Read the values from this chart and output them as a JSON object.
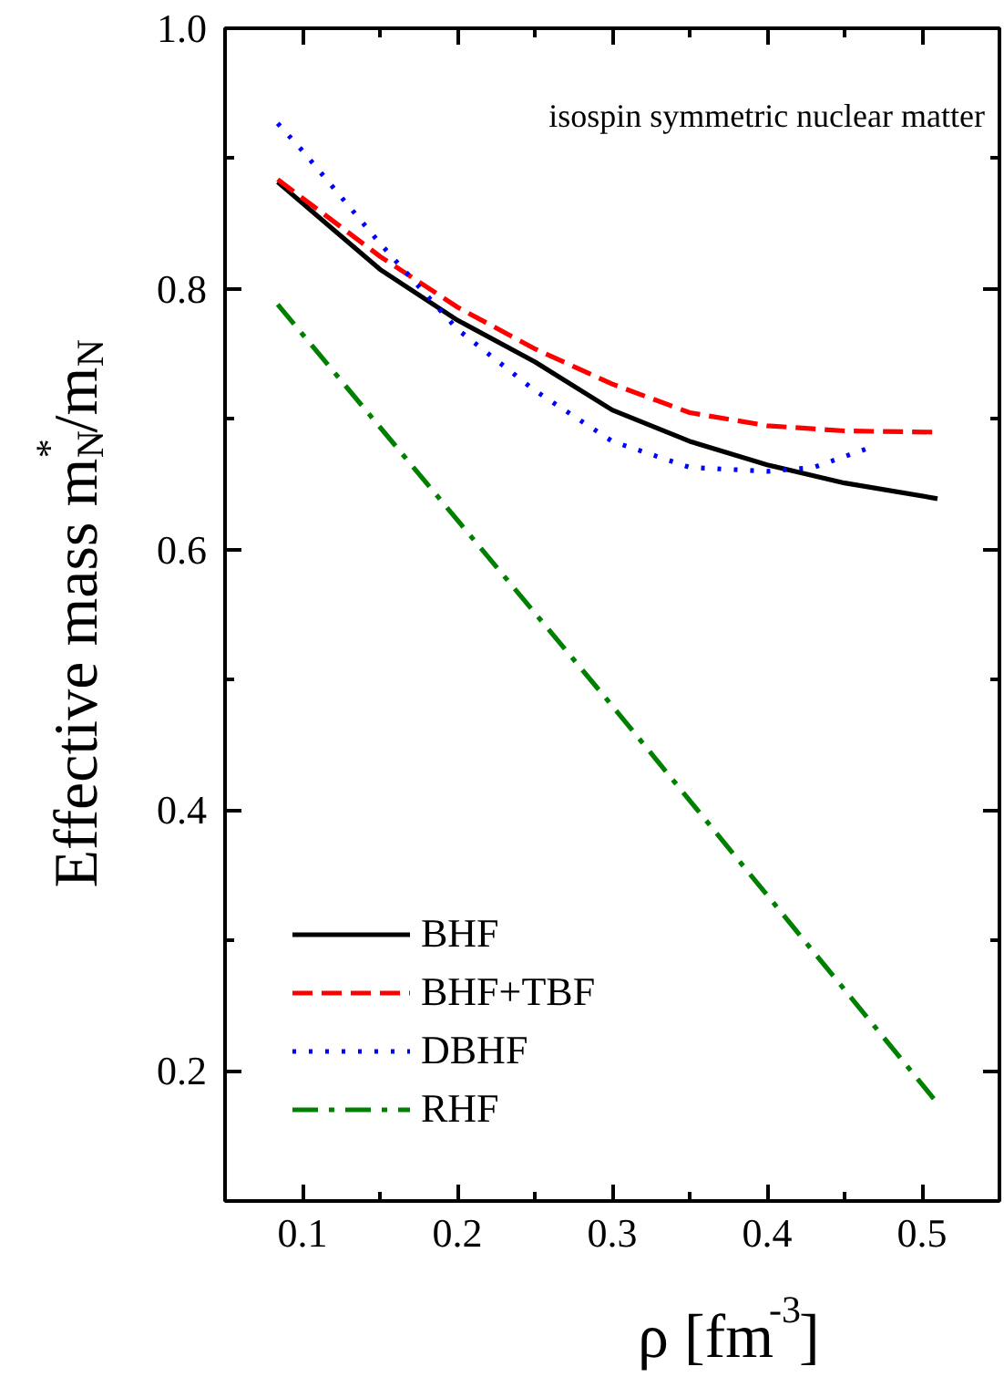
{
  "chart_data": {
    "type": "line",
    "xlabel": "ρ [fm$^{-3}$]",
    "ylabel": "Effective mass m$^{*}$$_{N}$/m$_{N}$",
    "annotations": [
      "isospin symmetric nuclear matter"
    ],
    "xlim": [
      0.05,
      0.55
    ],
    "ylim": [
      0.1,
      1.0
    ],
    "xticks": [
      0.1,
      0.2,
      0.3,
      0.4,
      0.5
    ],
    "yticks": [
      0.2,
      0.4,
      0.6,
      0.8,
      {
        "value": 1.0,
        "label": "1.0"
      }
    ],
    "grid": false,
    "legend": "bottom left",
    "marker": "none",
    "series": [
      {
        "name": "BHF",
        "color": "#000000",
        "line_style": "solid",
        "x": [
          0.084,
          0.15,
          0.2,
          0.25,
          0.3,
          0.35,
          0.4,
          0.45,
          0.51
        ],
        "values": [
          0.882,
          0.815,
          0.776,
          0.744,
          0.707,
          0.683,
          0.665,
          0.651,
          0.639
        ]
      },
      {
        "name": "BHF+TBF",
        "color": "#ff0000",
        "line_style": "dashed",
        "x": [
          0.084,
          0.15,
          0.2,
          0.25,
          0.3,
          0.35,
          0.4,
          0.45,
          0.51
        ],
        "values": [
          0.884,
          0.825,
          0.786,
          0.754,
          0.727,
          0.705,
          0.695,
          0.691,
          0.69
        ]
      },
      {
        "name": "DBHF",
        "color": "#0000ff",
        "line_style": "dotted",
        "x": [
          0.084,
          0.1,
          0.15,
          0.2,
          0.25,
          0.3,
          0.35,
          0.4,
          0.43,
          0.466
        ],
        "values": [
          0.927,
          0.906,
          0.835,
          0.769,
          0.722,
          0.683,
          0.663,
          0.66,
          0.663,
          0.678
        ]
      },
      {
        "name": "RHF",
        "color": "#008000",
        "line_style": "dashdot",
        "x": [
          0.084,
          0.3,
          0.51
        ],
        "values": [
          0.788,
          0.48,
          0.175
        ]
      }
    ]
  }
}
